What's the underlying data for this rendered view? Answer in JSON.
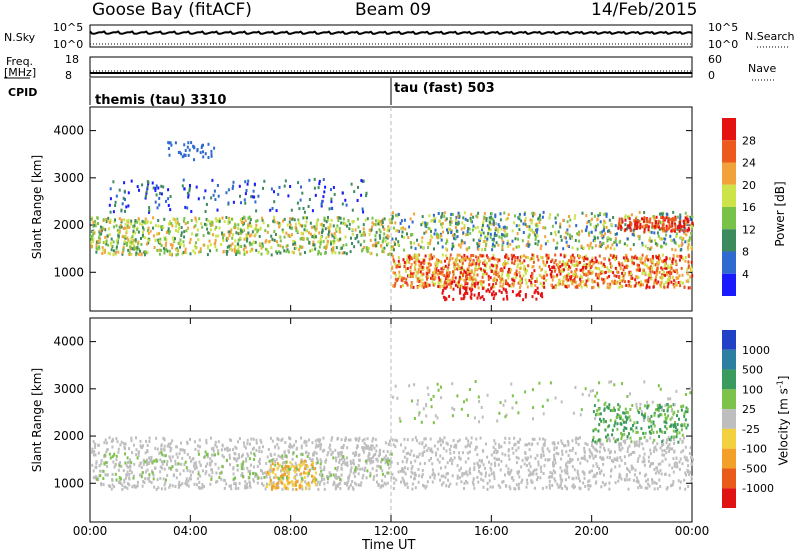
{
  "header": {
    "station": "Goose Bay (fitACF)",
    "beam": "Beam 09",
    "date": "14/Feb/2015"
  },
  "top_panels": {
    "nsky_label": "N.Sky",
    "nsky_ticks": [
      "10^5",
      "10^0"
    ],
    "nsearch_label": "N.Search",
    "nsearch_ticks": [
      "10^5",
      "10^0"
    ],
    "freq_label_line1": "Freq.",
    "freq_label_line2": "[MHz]",
    "freq_ticks": [
      "18",
      "8"
    ],
    "nave_label": "Nave",
    "nave_ticks": [
      "60",
      "0"
    ],
    "cpid_label": "CPID",
    "cpid_segments": [
      {
        "label": "themis (tau) 3310",
        "start_hour": 0
      },
      {
        "label": "tau (fast) 503",
        "start_hour": 12
      }
    ]
  },
  "power_colorbar": {
    "title": "Power [dB]",
    "ticks": [
      "28",
      "24",
      "20",
      "16",
      "12",
      "8",
      "4"
    ],
    "colors": [
      "#1a1aff",
      "#2e6ad0",
      "#3d8a5f",
      "#79c24a",
      "#cde34a",
      "#f2a23a",
      "#ec5a1e",
      "#e51212"
    ]
  },
  "velocity_colorbar": {
    "title": "Velocity [m s-1]",
    "ticks": [
      "1000",
      "500",
      "100",
      "25",
      "-25",
      "-100",
      "-500",
      "-1000"
    ],
    "colors": [
      "#2142c7",
      "#2c7fa0",
      "#3b9b5e",
      "#7cc24b",
      "#bebebe",
      "#f2d040",
      "#f2a02a",
      "#ea5a1a",
      "#e01212"
    ]
  },
  "axes": {
    "ylabel": "Slant Range [km]",
    "yticks": [
      "4000",
      "3000",
      "2000",
      "1000"
    ],
    "xlabel": "Time UT",
    "xticks": [
      "00:00",
      "04:00",
      "08:00",
      "12:00",
      "16:00",
      "20:00",
      "00:00"
    ]
  },
  "chart_data": [
    {
      "type": "heatmap",
      "panel": "power",
      "x_range_hours": [
        0,
        24
      ],
      "y_range_km": [
        180,
        4500
      ],
      "colorbar_range_db": [
        0,
        30
      ],
      "features": [
        {
          "name": "band_low",
          "hours": [
            0,
            12
          ],
          "range_km": [
            1500,
            2100
          ],
          "power_db": 18
        },
        {
          "name": "band_mid",
          "hours": [
            12,
            24
          ],
          "range_km": [
            800,
            1400
          ],
          "power_db": 26
        },
        {
          "name": "echo_top",
          "hours": [
            2,
            7
          ],
          "range_km": [
            2000,
            2300
          ],
          "power_db": 14
        }
      ]
    },
    {
      "type": "heatmap",
      "panel": "velocity",
      "x_range_hours": [
        0,
        24
      ],
      "y_range_km": [
        180,
        4500
      ],
      "colorbar_range_ms": [
        -1000,
        1000
      ],
      "features": [
        {
          "name": "ground_scatter",
          "hours": [
            0,
            24
          ],
          "range_km": [
            800,
            2000
          ],
          "velocity_ms": 0
        },
        {
          "name": "neg_patch",
          "hours": [
            7,
            9
          ],
          "range_km": [
            900,
            1500
          ],
          "velocity_ms": -300
        },
        {
          "name": "pos_patch",
          "hours": [
            20,
            23.5
          ],
          "range_km": [
            2000,
            2600
          ],
          "velocity_ms": 200
        }
      ]
    }
  ]
}
